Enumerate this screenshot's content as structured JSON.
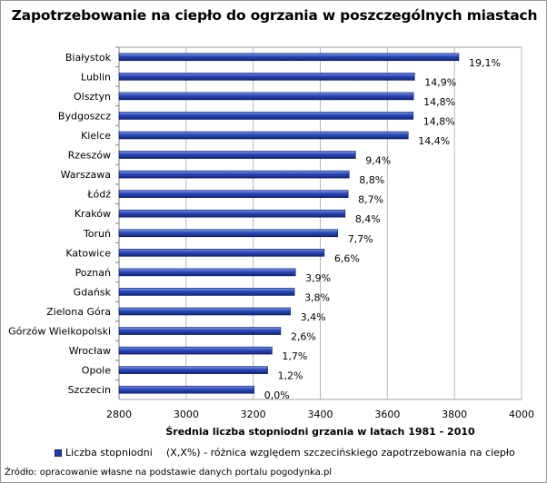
{
  "chart_data": {
    "type": "bar",
    "orientation": "horizontal",
    "title": "Zapotrzebowanie na ciepło do ogrzania w poszczególnych miastach",
    "xlabel": "Średnia liczba stopniodni grzania w latach 1981 - 2010",
    "ylabel": "",
    "xlim": [
      2800,
      4000
    ],
    "x_ticks": [
      "2800",
      "3000",
      "3200",
      "3400",
      "3600",
      "3800",
      "4000"
    ],
    "grid": "vertical gridlines",
    "legend_position": "bottom",
    "categories": [
      "Białystok",
      "Lublin",
      "Olsztyn",
      "Bydgoszcz",
      "Kielce",
      "Rzeszów",
      "Warszawa",
      "Łódź",
      "Kraków",
      "Toruń",
      "Katowice",
      "Poznań",
      "Gdańsk",
      "Zielona Góra",
      "Górzów Wielkopolski",
      "Wrocław",
      "Opole",
      "Szczecin"
    ],
    "series": [
      {
        "name": "Liczba stopniodni",
        "color": "#1f3da8",
        "values": [
          3813,
          3681,
          3678,
          3677,
          3662,
          3505,
          3486,
          3483,
          3474,
          3452,
          3412,
          3326,
          3323,
          3311,
          3282,
          3256,
          3243,
          3203
        ]
      }
    ],
    "data_labels": [
      "19,1%",
      "14,9%",
      "14,8%",
      "14,8%",
      "14,4%",
      "9,4%",
      "8,8%",
      "8,7%",
      "8,4%",
      "7,7%",
      "6,6%",
      "3,9%",
      "3,8%",
      "3,4%",
      "2,6%",
      "1,7%",
      "1,2%",
      "0,0%"
    ],
    "legend_note": "(X,X%) - różnica względem szczecińskiego zapotrzebowania na ciepło",
    "source": "Źródło: opracowanie własne na podstawie danych portalu pogodynka.pl"
  }
}
